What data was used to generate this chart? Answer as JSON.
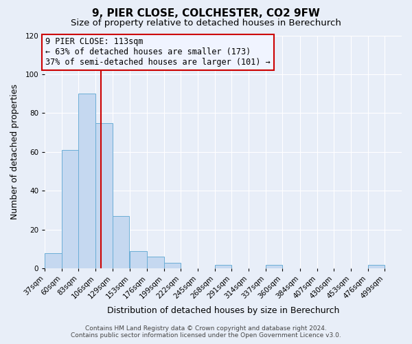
{
  "title": "9, PIER CLOSE, COLCHESTER, CO2 9FW",
  "subtitle": "Size of property relative to detached houses in Berechurch",
  "xlabel": "Distribution of detached houses by size in Berechurch",
  "ylabel": "Number of detached properties",
  "bin_labels": [
    "37sqm",
    "60sqm",
    "83sqm",
    "106sqm",
    "129sqm",
    "153sqm",
    "176sqm",
    "199sqm",
    "222sqm",
    "245sqm",
    "268sqm",
    "291sqm",
    "314sqm",
    "337sqm",
    "360sqm",
    "384sqm",
    "407sqm",
    "430sqm",
    "453sqm",
    "476sqm",
    "499sqm"
  ],
  "bin_starts": [
    37,
    60,
    83,
    106,
    129,
    153,
    176,
    199,
    222,
    245,
    268,
    291,
    314,
    337,
    360,
    384,
    407,
    430,
    453,
    476,
    499
  ],
  "bin_width": 23,
  "bar_values": [
    8,
    61,
    90,
    75,
    27,
    9,
    6,
    3,
    0,
    0,
    2,
    0,
    0,
    2,
    0,
    0,
    0,
    0,
    0,
    2,
    0
  ],
  "bar_color": "#c5d8f0",
  "bar_edgecolor": "#6baed6",
  "vline_x": 113,
  "vline_color": "#cc0000",
  "ylim": [
    0,
    120
  ],
  "yticks": [
    0,
    20,
    40,
    60,
    80,
    100,
    120
  ],
  "annotation_title": "9 PIER CLOSE: 113sqm",
  "annotation_line1": "← 63% of detached houses are smaller (173)",
  "annotation_line2": "37% of semi-detached houses are larger (101) →",
  "annotation_box_edgecolor": "#cc0000",
  "annotation_box_facecolor": "#f0f4ff",
  "footer_line1": "Contains HM Land Registry data © Crown copyright and database right 2024.",
  "footer_line2": "Contains public sector information licensed under the Open Government Licence v3.0.",
  "background_color": "#e8eef8",
  "grid_color": "#ffffff",
  "title_fontsize": 11,
  "subtitle_fontsize": 9.5,
  "axis_label_fontsize": 9,
  "tick_fontsize": 7.5,
  "annotation_fontsize": 8.5,
  "footer_fontsize": 6.5
}
